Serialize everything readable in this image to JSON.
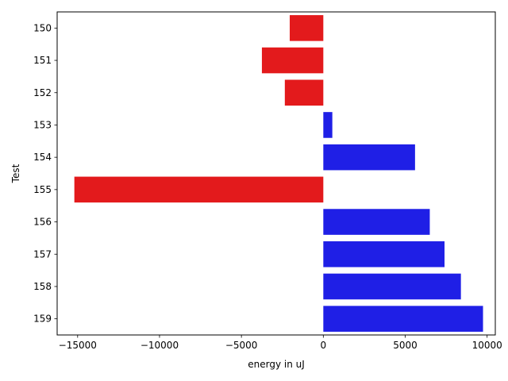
{
  "chart_data": {
    "type": "bar",
    "orientation": "horizontal",
    "categories": [
      "150",
      "151",
      "152",
      "153",
      "154",
      "155",
      "156",
      "157",
      "158",
      "159"
    ],
    "values": [
      -2050,
      -3750,
      -2350,
      550,
      5600,
      -15200,
      6500,
      7400,
      8400,
      9750
    ],
    "xlabel": "energy in uJ",
    "ylabel": "Test",
    "xlim": [
      -16250,
      10500
    ],
    "xticks": [
      -15000,
      -10000,
      -5000,
      0,
      5000,
      10000
    ],
    "xtick_labels": [
      "−15000",
      "−10000",
      "−5000",
      "0",
      "5000",
      "10000"
    ],
    "colors": {
      "negative": "#e31a1c",
      "positive": "#1f1fe6"
    },
    "grid": false,
    "legend": "none"
  }
}
